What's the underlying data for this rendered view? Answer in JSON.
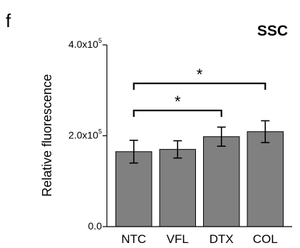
{
  "panel_letter": "f",
  "chart_data": {
    "type": "bar",
    "title": "SSC",
    "ylabel": "Relative fluorescence",
    "xlabel": "",
    "categories": [
      "NTC",
      "VFL",
      "DTX",
      "COL"
    ],
    "values": [
      165000,
      170000,
      198000,
      209000
    ],
    "errors": [
      25000,
      19000,
      21000,
      24000
    ],
    "ylim": [
      0,
      400000
    ],
    "y_ticks": [
      {
        "value": 0,
        "label": "0.0"
      },
      {
        "value": 200000,
        "label": "2.0x10",
        "exp": "5"
      },
      {
        "value": 400000,
        "label": "4.0x10",
        "exp": "5"
      }
    ],
    "bar_color": "#808080",
    "grid": false,
    "significance": [
      {
        "from": 0,
        "to": 2,
        "label": "*"
      },
      {
        "from": 0,
        "to": 3,
        "label": "*"
      }
    ]
  }
}
